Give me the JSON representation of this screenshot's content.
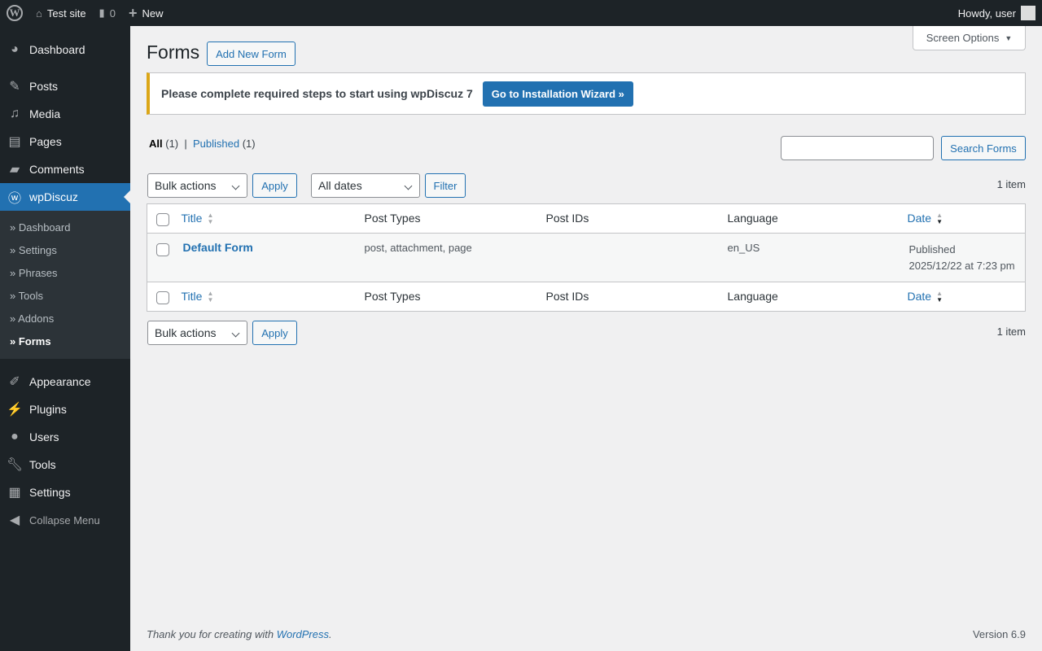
{
  "adminbar": {
    "site": "Test site",
    "comments": "0",
    "new": "New",
    "howdy": "Howdy, user"
  },
  "menu": {
    "items": [
      "Dashboard",
      "Posts",
      "Media",
      "Pages",
      "Comments",
      "wpDiscuz"
    ],
    "sub": [
      "» Dashboard",
      "» Settings",
      "» Phrases",
      "» Tools",
      "» Addons",
      "» Forms"
    ],
    "items2": [
      "Appearance",
      "Plugins",
      "Users",
      "Tools",
      "Settings"
    ],
    "collapse": "Collapse Menu"
  },
  "page": {
    "title": "Forms",
    "add_new": "Add New Form",
    "screen_options": "Screen Options"
  },
  "notice": {
    "text": "Please complete required steps to start using wpDiscuz 7",
    "button": "Go to Installation Wizard »"
  },
  "filters": {
    "all": "All",
    "all_count": "(1)",
    "published": "Published",
    "published_count": "(1)",
    "search_button": "Search Forms",
    "search_value": ""
  },
  "tablenav": {
    "bulk": "Bulk actions",
    "apply": "Apply",
    "dates": "All dates",
    "filter": "Filter",
    "count": "1 item"
  },
  "table": {
    "columns": [
      "Title",
      "Post Types",
      "Post IDs",
      "Language",
      "Date"
    ],
    "rows": [
      {
        "title": "Default Form",
        "post_types": "post, attachment, page",
        "post_ids": "",
        "language": "en_US",
        "status": "Published",
        "date": "2025/12/22 at 7:23 pm"
      }
    ]
  },
  "footer": {
    "thanks": "Thank you for creating with ",
    "wp": "WordPress",
    "version": "Version 6.9"
  }
}
